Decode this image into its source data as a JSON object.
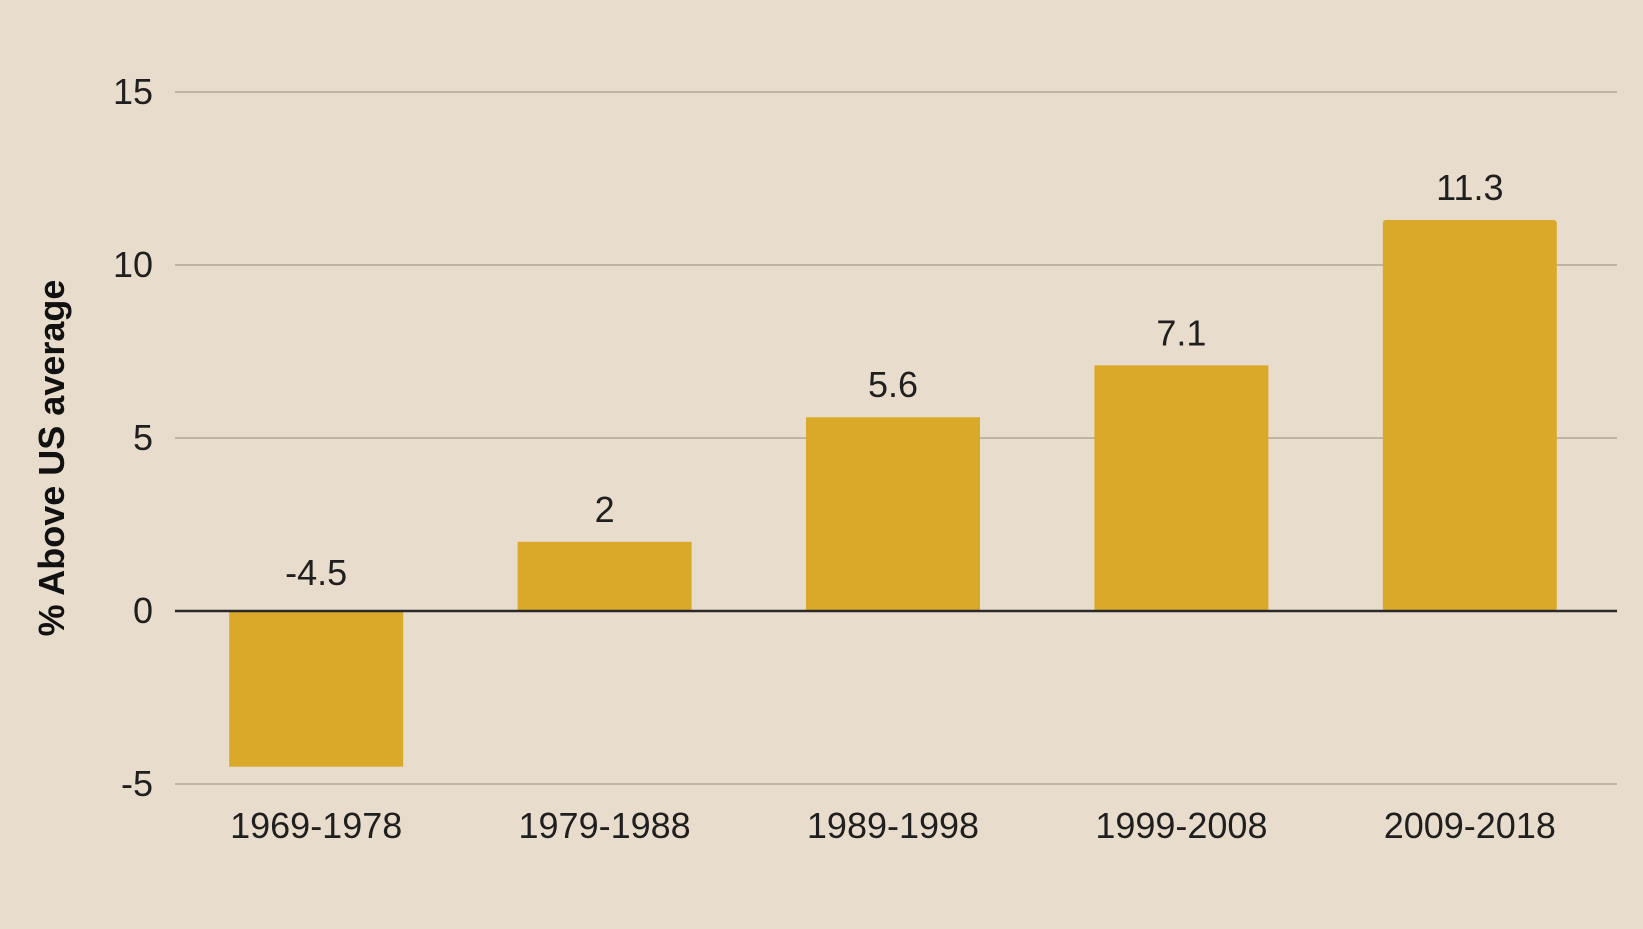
{
  "chart_data": {
    "type": "bar",
    "categories": [
      "1969-1978",
      "1979-1988",
      "1989-1998",
      "1999-2008",
      "2009-2018"
    ],
    "values": [
      -4.5,
      2,
      5.6,
      7.1,
      11.3
    ],
    "value_labels": [
      "-4.5",
      "2",
      "5.6",
      "7.1",
      "11.3"
    ],
    "title": "",
    "xlabel": "",
    "ylabel": "% Above US average",
    "ylim": [
      -5,
      15
    ],
    "yticks": [
      -5,
      0,
      5,
      10,
      15
    ],
    "ytick_labels": [
      "-5",
      "0",
      "5",
      "10",
      "15"
    ],
    "grid": true,
    "legend": "none",
    "colors": {
      "background": "#e8ddcc",
      "bar": "#dba92a",
      "grid": "#bfb3a2",
      "zero_line": "#2a2a2a",
      "text": "#1f1f1f"
    }
  }
}
